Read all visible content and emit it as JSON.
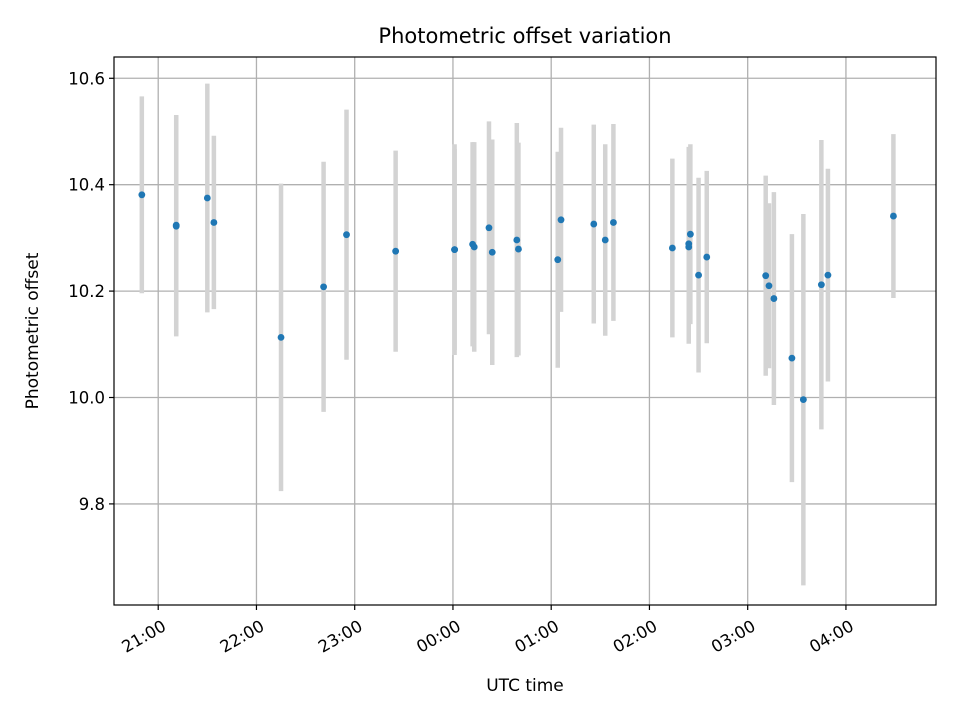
{
  "chart_data": {
    "type": "scatter",
    "title": "Photometric offset variation",
    "xlabel": "UTC time",
    "ylabel": "Photometric offset",
    "x_axis": {
      "type": "time",
      "range": [
        "20:33",
        "04:55"
      ],
      "ticks": [
        "21:00",
        "22:00",
        "23:00",
        "00:00",
        "01:00",
        "02:00",
        "03:00",
        "04:00"
      ],
      "tick_label_rotation_deg": 30
    },
    "y_axis": {
      "range": [
        9.61,
        10.64
      ],
      "ticks": [
        "9.8",
        "10.0",
        "10.2",
        "10.4",
        "10.6"
      ]
    },
    "grid": true,
    "colors": {
      "point": "#1f77b4",
      "error_bar": "#d3d3d3",
      "grid": "#b0b0b0"
    },
    "series": [
      {
        "points": [
          {
            "x": "20:50",
            "y": 10.381,
            "yerr": 0.185
          },
          {
            "x": "21:11",
            "y": 10.324,
            "yerr": 0.207
          },
          {
            "x": "21:11",
            "y": 10.322,
            "yerr": 0.207
          },
          {
            "x": "21:30",
            "y": 10.375,
            "yerr": 0.215
          },
          {
            "x": "21:34",
            "y": 10.329,
            "yerr": 0.163
          },
          {
            "x": "22:15",
            "y": 10.113,
            "yerr": 0.289
          },
          {
            "x": "22:41",
            "y": 10.208,
            "yerr": 0.235
          },
          {
            "x": "22:55",
            "y": 10.306,
            "yerr": 0.235
          },
          {
            "x": "23:25",
            "y": 10.275,
            "yerr": 0.189
          },
          {
            "x": "00:01",
            "y": 10.278,
            "yerr": 0.189
          },
          {
            "x": "00:01",
            "y": 10.278,
            "yerr": 0.198
          },
          {
            "x": "00:12",
            "y": 10.288,
            "yerr": 0.192
          },
          {
            "x": "00:13",
            "y": 10.283,
            "yerr": 0.197
          },
          {
            "x": "00:22",
            "y": 10.319,
            "yerr": 0.2
          },
          {
            "x": "00:24",
            "y": 10.273,
            "yerr": 0.212
          },
          {
            "x": "00:39",
            "y": 10.296,
            "yerr": 0.22
          },
          {
            "x": "00:40",
            "y": 10.279,
            "yerr": 0.2
          },
          {
            "x": "01:04",
            "y": 10.259,
            "yerr": 0.203
          },
          {
            "x": "01:06",
            "y": 10.334,
            "yerr": 0.173
          },
          {
            "x": "01:26",
            "y": 10.326,
            "yerr": 0.187
          },
          {
            "x": "01:33",
            "y": 10.296,
            "yerr": 0.18
          },
          {
            "x": "01:38",
            "y": 10.329,
            "yerr": 0.185
          },
          {
            "x": "02:14",
            "y": 10.281,
            "yerr": 0.168
          },
          {
            "x": "02:24",
            "y": 10.283,
            "yerr": 0.182
          },
          {
            "x": "02:24",
            "y": 10.289,
            "yerr": 0.182
          },
          {
            "x": "02:25",
            "y": 10.307,
            "yerr": 0.169
          },
          {
            "x": "02:30",
            "y": 10.23,
            "yerr": 0.183
          },
          {
            "x": "02:35",
            "y": 10.264,
            "yerr": 0.162
          },
          {
            "x": "03:11",
            "y": 10.229,
            "yerr": 0.188
          },
          {
            "x": "03:13",
            "y": 10.21,
            "yerr": 0.155
          },
          {
            "x": "03:16",
            "y": 10.186,
            "yerr": 0.2
          },
          {
            "x": "03:27",
            "y": 10.074,
            "yerr": 0.233
          },
          {
            "x": "03:34",
            "y": 9.996,
            "yerr": 0.349
          },
          {
            "x": "03:45",
            "y": 10.212,
            "yerr": 0.272
          },
          {
            "x": "03:49",
            "y": 10.23,
            "yerr": 0.2
          },
          {
            "x": "04:29",
            "y": 10.341,
            "yerr": 0.154
          }
        ]
      }
    ]
  }
}
